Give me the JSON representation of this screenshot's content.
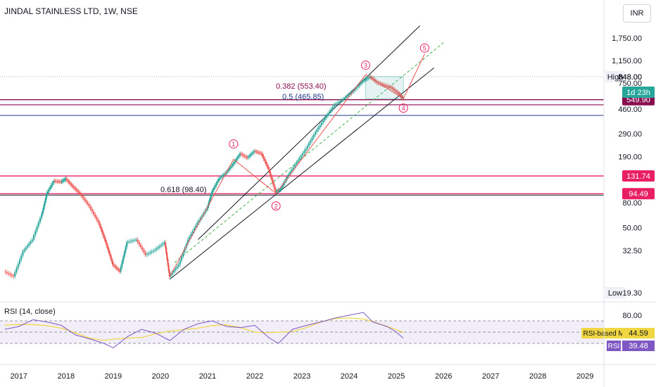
{
  "header": {
    "title": "JINDAL STAINLESS LTD, 1W, NSE",
    "currency_button": "INR"
  },
  "chart_data": {
    "type": "line",
    "subtype": "candlestick",
    "title": "JINDAL STAINLESS LTD, 1W, NSE",
    "y_scale": "log",
    "price_ticks": [
      "1,750.00",
      "1,150.00",
      "848.00",
      "750.00",
      "460.00",
      "290.00",
      "190.00",
      "80.00",
      "50.00",
      "32.50"
    ],
    "price_tick_values": [
      1750,
      1150,
      848,
      750,
      460,
      290,
      190,
      80,
      50,
      32.5
    ],
    "time_ticks": [
      "2017",
      "2018",
      "2019",
      "2020",
      "2021",
      "2022",
      "2023",
      "2024",
      "2025",
      "2026",
      "2027",
      "2028",
      "2029"
    ],
    "price_path": [
      {
        "t": 2016.7,
        "p": 22
      },
      {
        "t": 2016.9,
        "p": 20
      },
      {
        "t": 2017.1,
        "p": 32
      },
      {
        "t": 2017.3,
        "p": 40
      },
      {
        "t": 2017.5,
        "p": 65
      },
      {
        "t": 2017.6,
        "p": 95
      },
      {
        "t": 2017.75,
        "p": 120
      },
      {
        "t": 2017.9,
        "p": 118
      },
      {
        "t": 2018.0,
        "p": 125
      },
      {
        "t": 2018.15,
        "p": 108
      },
      {
        "t": 2018.3,
        "p": 95
      },
      {
        "t": 2018.5,
        "p": 75
      },
      {
        "t": 2018.7,
        "p": 55
      },
      {
        "t": 2018.85,
        "p": 38
      },
      {
        "t": 2019.0,
        "p": 25
      },
      {
        "t": 2019.15,
        "p": 22
      },
      {
        "t": 2019.3,
        "p": 38
      },
      {
        "t": 2019.5,
        "p": 40
      },
      {
        "t": 2019.7,
        "p": 30
      },
      {
        "t": 2019.9,
        "p": 33
      },
      {
        "t": 2020.1,
        "p": 38
      },
      {
        "t": 2020.2,
        "p": 20
      },
      {
        "t": 2020.4,
        "p": 25
      },
      {
        "t": 2020.6,
        "p": 40
      },
      {
        "t": 2020.8,
        "p": 55
      },
      {
        "t": 2021.0,
        "p": 72
      },
      {
        "t": 2021.1,
        "p": 98
      },
      {
        "t": 2021.25,
        "p": 125
      },
      {
        "t": 2021.4,
        "p": 140
      },
      {
        "t": 2021.55,
        "p": 165
      },
      {
        "t": 2021.7,
        "p": 200
      },
      {
        "t": 2021.85,
        "p": 185
      },
      {
        "t": 2022.0,
        "p": 210
      },
      {
        "t": 2022.15,
        "p": 200
      },
      {
        "t": 2022.3,
        "p": 150
      },
      {
        "t": 2022.45,
        "p": 98
      },
      {
        "t": 2022.55,
        "p": 102
      },
      {
        "t": 2022.7,
        "p": 130
      },
      {
        "t": 2022.9,
        "p": 170
      },
      {
        "t": 2023.1,
        "p": 220
      },
      {
        "t": 2023.3,
        "p": 300
      },
      {
        "t": 2023.5,
        "p": 390
      },
      {
        "t": 2023.7,
        "p": 500
      },
      {
        "t": 2023.9,
        "p": 560
      },
      {
        "t": 2024.1,
        "p": 650
      },
      {
        "t": 2024.3,
        "p": 780
      },
      {
        "t": 2024.45,
        "p": 848
      },
      {
        "t": 2024.6,
        "p": 760
      },
      {
        "t": 2024.75,
        "p": 720
      },
      {
        "t": 2024.9,
        "p": 690
      },
      {
        "t": 2025.05,
        "p": 620
      },
      {
        "t": 2025.15,
        "p": 560
      }
    ],
    "rsi_path": [
      {
        "t": 2016.7,
        "v": 55
      },
      {
        "t": 2017.0,
        "v": 60
      },
      {
        "t": 2017.3,
        "v": 72
      },
      {
        "t": 2017.6,
        "v": 68
      },
      {
        "t": 2017.9,
        "v": 62
      },
      {
        "t": 2018.2,
        "v": 45
      },
      {
        "t": 2018.5,
        "v": 38
      },
      {
        "t": 2018.8,
        "v": 30
      },
      {
        "t": 2019.0,
        "v": 22
      },
      {
        "t": 2019.3,
        "v": 42
      },
      {
        "t": 2019.6,
        "v": 55
      },
      {
        "t": 2019.9,
        "v": 48
      },
      {
        "t": 2020.2,
        "v": 35
      },
      {
        "t": 2020.5,
        "v": 55
      },
      {
        "t": 2020.8,
        "v": 65
      },
      {
        "t": 2021.1,
        "v": 70
      },
      {
        "t": 2021.4,
        "v": 60
      },
      {
        "t": 2021.7,
        "v": 58
      },
      {
        "t": 2022.0,
        "v": 62
      },
      {
        "t": 2022.3,
        "v": 40
      },
      {
        "t": 2022.5,
        "v": 30
      },
      {
        "t": 2022.8,
        "v": 55
      },
      {
        "t": 2023.1,
        "v": 62
      },
      {
        "t": 2023.4,
        "v": 68
      },
      {
        "t": 2023.7,
        "v": 75
      },
      {
        "t": 2024.0,
        "v": 80
      },
      {
        "t": 2024.3,
        "v": 85
      },
      {
        "t": 2024.5,
        "v": 68
      },
      {
        "t": 2024.8,
        "v": 60
      },
      {
        "t": 2025.0,
        "v": 50
      },
      {
        "t": 2025.15,
        "v": 39
      }
    ],
    "horizontal_lines": [
      {
        "value": 131.74,
        "label": "131.74",
        "color": "#e91e63"
      },
      {
        "value": 94.49,
        "label": "94.49",
        "color": "#e91e63"
      },
      {
        "value": 549.9,
        "label": "549.90",
        "color": "#880e4f"
      }
    ],
    "fib_labels": [
      {
        "text": "0.382 (553.40)",
        "color": "#880e4f"
      },
      {
        "text": "0.5 (465.85)",
        "color": "#1e3a8a"
      },
      {
        "text": "0.618 (98.40)",
        "color": "#131722"
      }
    ],
    "waves": [
      "1",
      "2",
      "3",
      "4",
      "5"
    ],
    "high": {
      "label": "High",
      "value": "848.00"
    },
    "low": {
      "label": "Low",
      "value": "19.30"
    },
    "countdown": "1d 23h",
    "rsi": {
      "title": "RSI (14, close)",
      "ticks": [
        "80.00"
      ],
      "bands": [
        70,
        50,
        30
      ],
      "ma_label": "RSI-based MA",
      "ma_value": "44.59",
      "rsi_label": "RSI",
      "rsi_value": "39.48"
    }
  },
  "colors": {
    "up": "#26a69a",
    "down": "#ef5350",
    "channel": "#131722",
    "midline": "#4caf50",
    "rsi": "#7e57c2",
    "rsi_ma": "#f0d640",
    "hline": "#e91e63",
    "badge_dark": "#880e4f",
    "countdown_bg": "#26a69a",
    "low_bg": "#eef0f5"
  }
}
